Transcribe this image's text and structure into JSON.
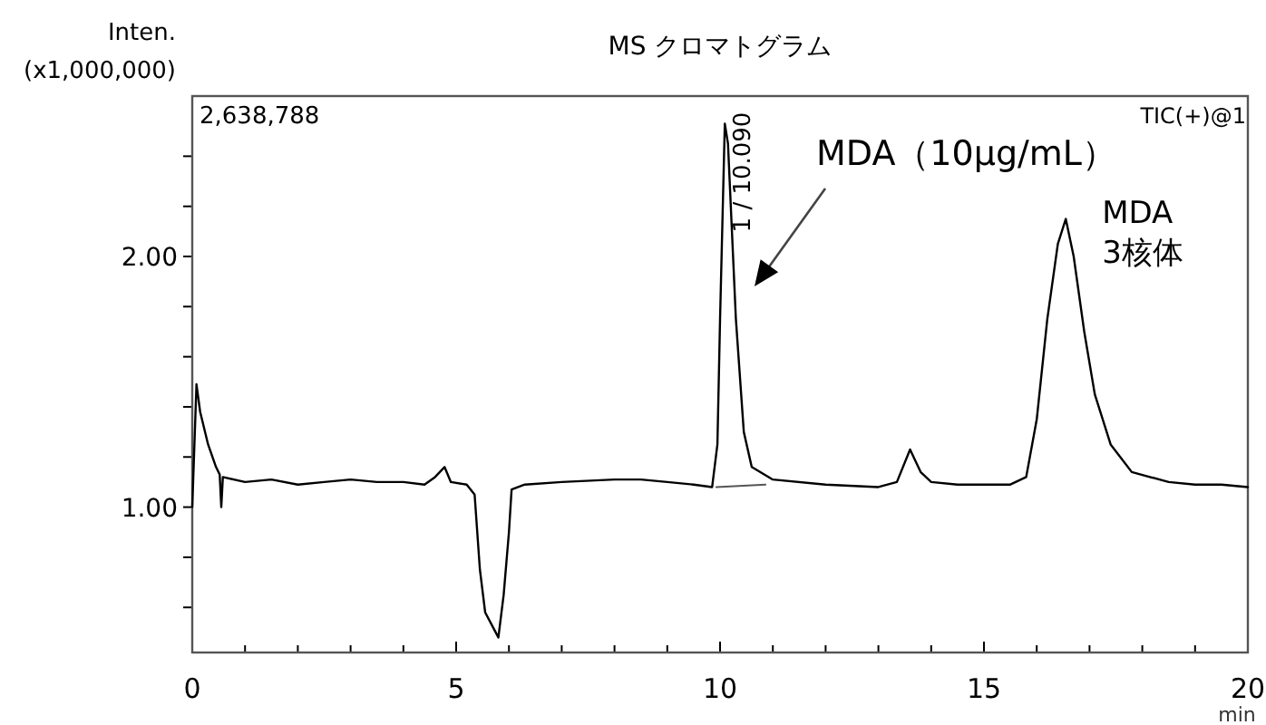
{
  "chart_data": {
    "type": "line",
    "title": "MS クロマトグラム",
    "xlabel": "min",
    "ylabel": "Inten.\n(x1,000,000)",
    "series": [
      {
        "color": "#000000",
        "x": [
          0,
          0.08,
          0.15,
          0.3,
          0.45,
          0.52,
          0.55,
          0.58,
          1,
          1.5,
          2,
          2.5,
          3,
          3.5,
          4,
          4.4,
          4.6,
          4.78,
          4.9,
          5.2,
          5.35,
          5.45,
          5.55,
          5.7,
          5.8,
          5.9,
          6,
          6.05,
          6.3,
          7,
          8,
          8.5,
          9,
          9.5,
          9.85,
          9.95,
          10.0,
          10.09,
          10.15,
          10.3,
          10.45,
          10.6,
          11,
          12,
          13,
          13.35,
          13.6,
          13.8,
          14,
          14.5,
          15,
          15.5,
          15.8,
          16.0,
          16.2,
          16.4,
          16.55,
          16.7,
          16.9,
          17.1,
          17.4,
          17.8,
          18.5,
          19,
          19.5,
          20
        ],
        "values": [
          1.0,
          1.49,
          1.38,
          1.25,
          1.16,
          1.13,
          1.0,
          1.12,
          1.1,
          1.11,
          1.09,
          1.1,
          1.11,
          1.1,
          1.1,
          1.09,
          1.12,
          1.16,
          1.1,
          1.09,
          1.05,
          0.75,
          0.58,
          0.52,
          0.48,
          0.65,
          0.9,
          1.07,
          1.09,
          1.1,
          1.11,
          1.11,
          1.1,
          1.09,
          1.08,
          1.25,
          1.75,
          2.53,
          2.45,
          1.75,
          1.3,
          1.16,
          1.11,
          1.09,
          1.08,
          1.1,
          1.23,
          1.14,
          1.1,
          1.09,
          1.09,
          1.09,
          1.12,
          1.35,
          1.75,
          2.05,
          2.15,
          2.0,
          1.7,
          1.45,
          1.25,
          1.14,
          1.1,
          1.09,
          1.09,
          1.08
        ]
      },
      {
        "color": "#555555",
        "x": [
          9.93,
          10.86
        ],
        "values": [
          1.08,
          1.09
        ]
      }
    ],
    "xlim": [
      0,
      20
    ],
    "xticks": [
      0,
      {
        "value": 1,
        "label": null
      },
      {
        "value": 2,
        "label": null
      },
      {
        "value": 3,
        "label": null
      },
      {
        "value": 4,
        "label": null
      },
      5,
      {
        "value": 6,
        "label": null
      },
      {
        "value": 7,
        "label": null
      },
      {
        "value": 8,
        "label": null
      },
      {
        "value": 9,
        "label": null
      },
      10,
      {
        "value": 11,
        "label": null
      },
      {
        "value": 12,
        "label": null
      },
      {
        "value": 13,
        "label": null
      },
      {
        "value": 14,
        "label": null
      },
      15,
      {
        "value": 16,
        "label": null
      },
      {
        "value": 17,
        "label": null
      },
      {
        "value": 18,
        "label": null
      },
      {
        "value": 19,
        "label": null
      },
      20
    ],
    "ylim": [
      0.42,
      2.64
    ],
    "yticks": [
      {
        "value": 0.6,
        "label": null
      },
      {
        "value": 0.8,
        "label": null
      },
      {
        "value": 1,
        "label": "1.00"
      },
      {
        "value": 1.2,
        "label": null
      },
      {
        "value": 1.4,
        "label": null
      },
      {
        "value": 1.6,
        "label": null
      },
      {
        "value": 1.8,
        "label": null
      },
      {
        "value": 2,
        "label": "2.00"
      },
      {
        "value": 2.2,
        "label": null
      },
      {
        "value": 2.4,
        "label": null
      }
    ],
    "annotations": [
      "2,638,788",
      "TIC(+)@1",
      {
        "text": "1 / 10.090",
        "x": 10.09,
        "y": 2.53
      },
      "MDA（10μg/mL）",
      {
        "text": "MDA\n3核体",
        "x": 16.55,
        "y": 2.15
      }
    ]
  }
}
